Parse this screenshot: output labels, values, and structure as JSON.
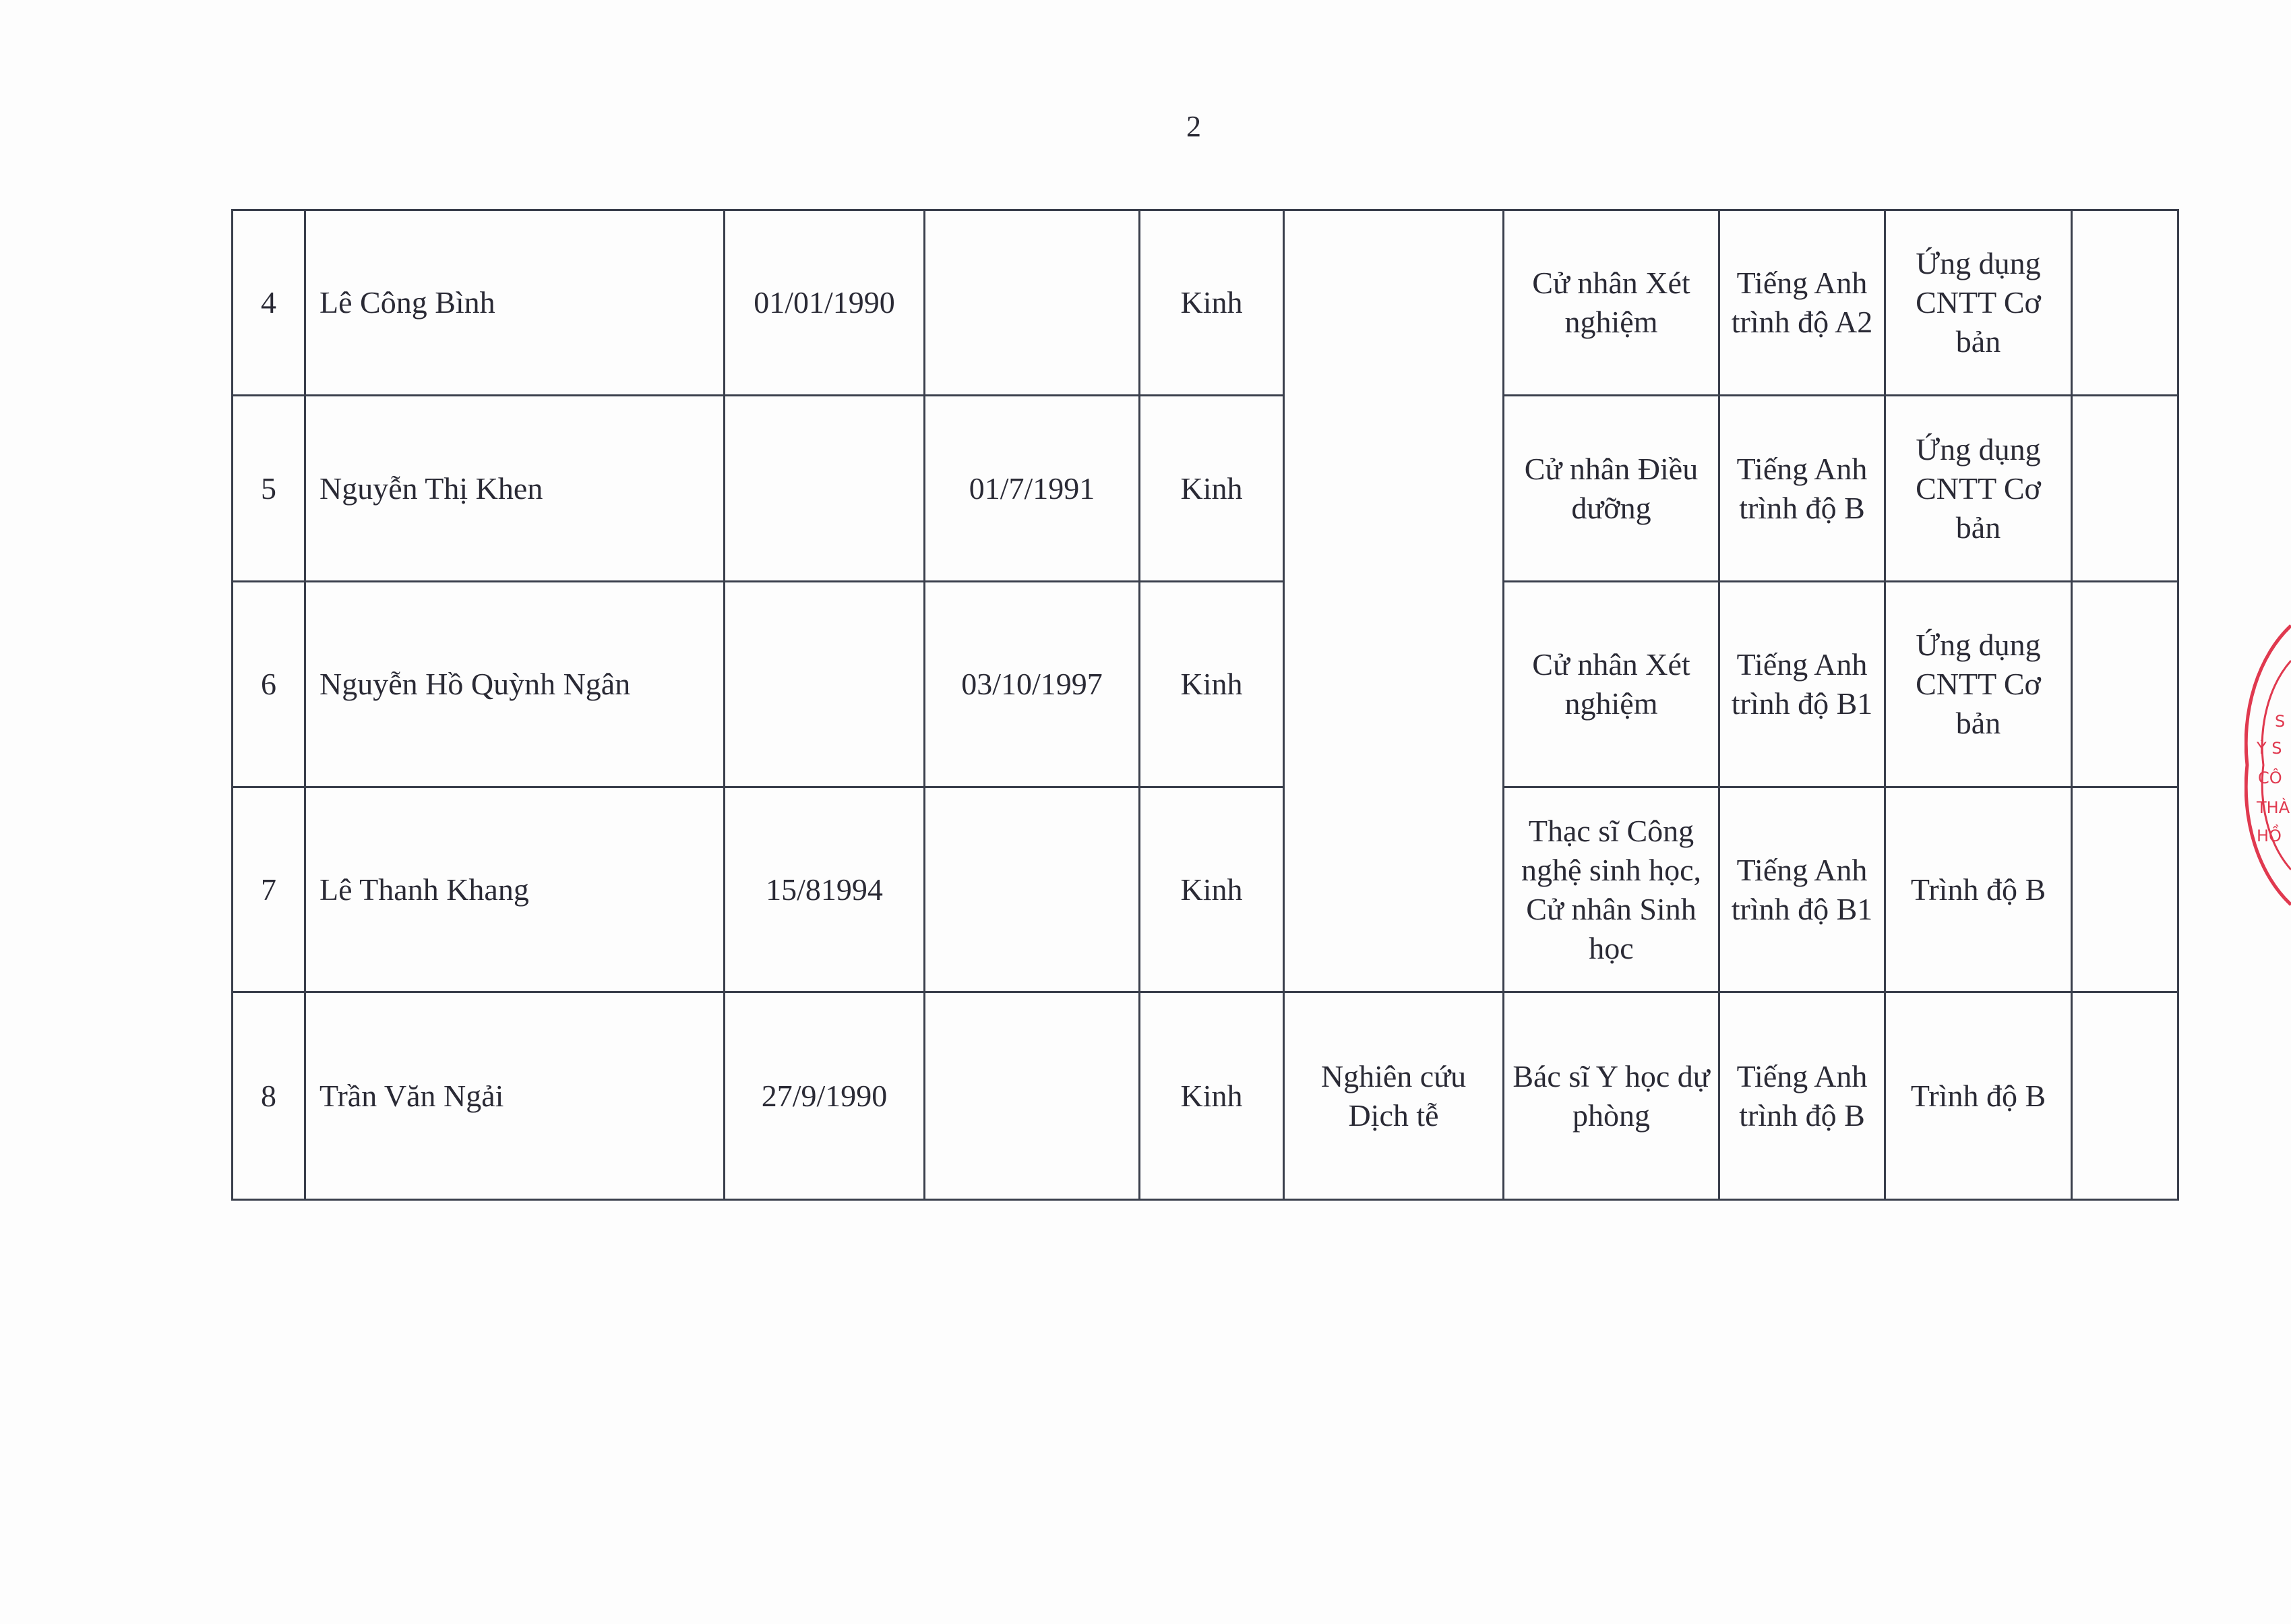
{
  "page_number": "2",
  "rows": [
    {
      "no": "4",
      "name": "Lê Công Bình",
      "dob_male": "01/01/1990",
      "dob_female": "",
      "ethnicity": "Kinh",
      "degree": "Cử nhân Xét nghiệm",
      "english": "Tiếng Anh trình độ A2",
      "it": "Ứng dụng CNTT Cơ bản",
      "note": ""
    },
    {
      "no": "5",
      "name": "Nguyễn Thị Khen",
      "dob_male": "",
      "dob_female": "01/7/1991",
      "ethnicity": "Kinh",
      "degree": "Cử nhân Điều dưỡng",
      "english": "Tiếng Anh trình độ B",
      "it": "Ứng dụng CNTT Cơ bản",
      "note": ""
    },
    {
      "no": "6",
      "name": "Nguyễn Hồ Quỳnh Ngân",
      "dob_male": "",
      "dob_female": "03/10/1997",
      "ethnicity": "Kinh",
      "degree": "Cử nhân Xét nghiệm",
      "english": "Tiếng Anh trình độ B1",
      "it": "Ứng dụng CNTT Cơ bản",
      "note": ""
    },
    {
      "no": "7",
      "name": "Lê Thanh Khang",
      "dob_male": "15/81994",
      "dob_female": "",
      "ethnicity": "Kinh",
      "degree": "Thạc sĩ Công nghệ sinh học, Cử nhân Sinh học",
      "english": "Tiếng Anh trình độ B1",
      "it": "Trình độ B",
      "note": ""
    },
    {
      "no": "8",
      "name": "Trần Văn Ngải",
      "dob_male": "27/9/1990",
      "dob_female": "",
      "ethnicity": "Kinh",
      "position": "Nghiên cứu Dịch tễ",
      "degree": "Bác sĩ Y học dự phòng",
      "english": "Tiếng Anh trình độ B",
      "it": "Trình độ B",
      "note": ""
    }
  ],
  "stamp": {
    "lines": [
      "S",
      "Ý S",
      "CÔ",
      "THÀ",
      "HỒ"
    ],
    "color": "#e0394f"
  }
}
